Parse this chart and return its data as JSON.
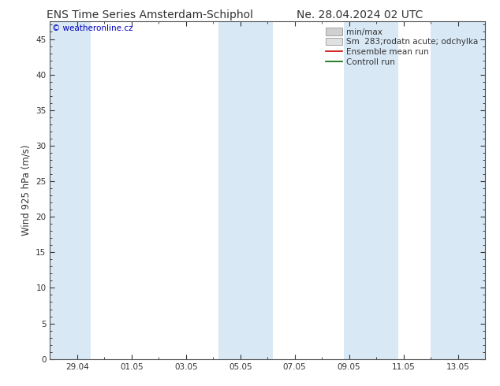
{
  "title_left": "ENS Time Series Amsterdam-Schiphol",
  "title_right": "Ne. 28.04.2024 02 UTC",
  "ylabel": "Wind 925 hPa (m/s)",
  "ylim": [
    0,
    47.5
  ],
  "yticks": [
    0,
    5,
    10,
    15,
    20,
    25,
    30,
    35,
    40,
    45
  ],
  "xtick_labels": [
    "29.04",
    "01.05",
    "03.05",
    "05.05",
    "07.05",
    "09.05",
    "11.05",
    "13.05"
  ],
  "xtick_positions": [
    1,
    3,
    5,
    7,
    9,
    11,
    13,
    15
  ],
  "xlim": [
    0,
    16
  ],
  "blue_bands": [
    [
      0,
      1.5
    ],
    [
      6.2,
      8.2
    ],
    [
      10.8,
      12.8
    ],
    [
      14.0,
      16.0
    ]
  ],
  "band_color": "#d8e8f5",
  "bg_color": "#ffffff",
  "copyright_text": "© weatheronline.cz",
  "copyright_color": "#0000bb",
  "legend_items": [
    {
      "label": "min/max",
      "color": "#d0d0d0",
      "type": "patch"
    },
    {
      "label": "Sm  283;rodatn acute; odchylka",
      "color": "#e0e0e0",
      "type": "patch"
    },
    {
      "label": "Ensemble mean run",
      "color": "#cc0000",
      "type": "line"
    },
    {
      "label": "Controll run",
      "color": "#006600",
      "type": "line"
    }
  ],
  "title_fontsize": 10,
  "tick_fontsize": 7.5,
  "ylabel_fontsize": 8.5,
  "legend_fontsize": 7.5
}
